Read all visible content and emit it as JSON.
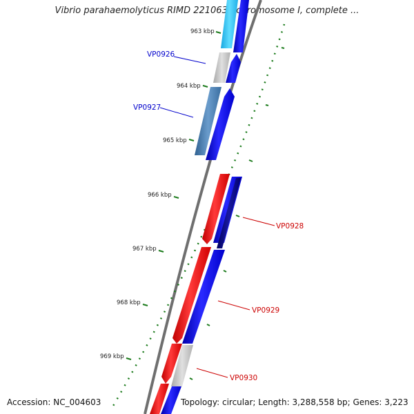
{
  "title": "Vibrio parahaemolyticus RIMD 2210633 chromosome I, complete ...",
  "footer": {
    "accession": "Accession: NC_004603",
    "topology": "Topology: circular; Length: 3,288,558 bp; Genes: 3,223"
  },
  "ticks": [
    {
      "label": "963 kbp"
    },
    {
      "label": "964 kbp"
    },
    {
      "label": "965 kbp"
    },
    {
      "label": "966 kbp"
    },
    {
      "label": "967 kbp"
    },
    {
      "label": "968 kbp"
    },
    {
      "label": "969 kbp"
    }
  ],
  "gene_labels": [
    {
      "text": "VP0926",
      "color": "#0000cc"
    },
    {
      "text": "VP0927",
      "color": "#0000cc"
    },
    {
      "text": "VP0928",
      "color": "#cc0000"
    },
    {
      "text": "VP0929",
      "color": "#cc0000"
    },
    {
      "text": "VP0930",
      "color": "#cc0000"
    }
  ],
  "colors": {
    "backbone": "#808080",
    "reverse_strand": "#ff0000",
    "forward_strand": "#0000ff",
    "cyan_feature": "#33ccff",
    "gray_feature": "#c8c8c8",
    "steel_feature": "#4a7fb0",
    "navy_feature": "#000080",
    "tick_color": "#1a7a1a"
  }
}
